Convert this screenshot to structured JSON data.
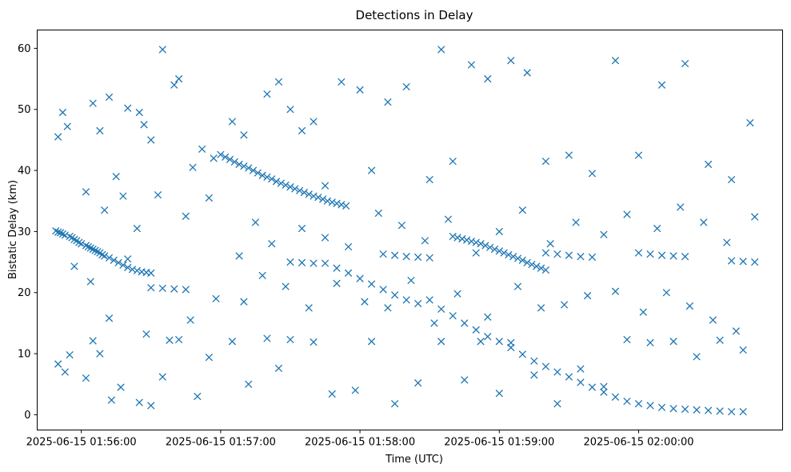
{
  "chart_data": {
    "type": "scatter",
    "title": "Detections in Delay",
    "xlabel": "Time (UTC)",
    "ylabel": "Bistatic Delay (km)",
    "x_ticks": [
      "2025-06-15 01:56:00",
      "2025-06-15 01:57:00",
      "2025-06-15 01:58:00",
      "2025-06-15 01:59:00",
      "2025-06-15 02:00:00"
    ],
    "y_ticks": [
      0,
      10,
      20,
      30,
      40,
      50,
      60
    ],
    "xlim": [
      "2025-06-15 01:55:41",
      "2025-06-15 02:01:02"
    ],
    "ylim": [
      -2.5,
      63
    ],
    "grid": false,
    "marker": "x",
    "color": "#1f77b4",
    "series": [
      {
        "x": [
          "2025-06-15 01:55:49",
          "2025-06-15 01:55:50",
          "2025-06-15 01:55:51",
          "2025-06-15 01:55:52",
          "2025-06-15 01:55:53",
          "2025-06-15 01:55:55",
          "2025-06-15 01:55:56",
          "2025-06-15 01:55:57",
          "2025-06-15 01:55:58",
          "2025-06-15 01:55:59",
          "2025-06-15 01:56:00",
          "2025-06-15 01:56:02",
          "2025-06-15 01:56:03",
          "2025-06-15 01:56:04",
          "2025-06-15 01:56:05",
          "2025-06-15 01:56:06",
          "2025-06-15 01:56:07",
          "2025-06-15 01:56:08",
          "2025-06-15 01:56:09",
          "2025-06-15 01:56:10",
          "2025-06-15 01:56:12",
          "2025-06-15 01:56:14",
          "2025-06-15 01:56:16",
          "2025-06-15 01:56:18",
          "2025-06-15 01:56:20",
          "2025-06-15 01:56:22",
          "2025-06-15 01:56:24",
          "2025-06-15 01:56:26",
          "2025-06-15 01:56:28",
          "2025-06-15 01:56:30"
        ],
        "y": [
          30.1,
          29.9,
          29.8,
          29.6,
          29.4,
          29.2,
          29.0,
          28.7,
          28.5,
          28.2,
          28.0,
          27.7,
          27.5,
          27.3,
          27.1,
          26.9,
          26.7,
          26.5,
          26.2,
          26.0,
          25.7,
          25.3,
          24.9,
          24.5,
          24.1,
          23.8,
          23.6,
          23.4,
          23.3,
          23.2
        ]
      },
      {
        "x": [
          "2025-06-15 01:57:00",
          "2025-06-15 01:57:02",
          "2025-06-15 01:57:04",
          "2025-06-15 01:57:06",
          "2025-06-15 01:57:08",
          "2025-06-15 01:57:10",
          "2025-06-15 01:57:12",
          "2025-06-15 01:57:14",
          "2025-06-15 01:57:16",
          "2025-06-15 01:57:18",
          "2025-06-15 01:57:20",
          "2025-06-15 01:57:22",
          "2025-06-15 01:57:24",
          "2025-06-15 01:57:26",
          "2025-06-15 01:57:28",
          "2025-06-15 01:57:30",
          "2025-06-15 01:57:32",
          "2025-06-15 01:57:34",
          "2025-06-15 01:57:36",
          "2025-06-15 01:57:38",
          "2025-06-15 01:57:40",
          "2025-06-15 01:57:42",
          "2025-06-15 01:57:44",
          "2025-06-15 01:57:46",
          "2025-06-15 01:57:48",
          "2025-06-15 01:57:50",
          "2025-06-15 01:57:52",
          "2025-06-15 01:57:54"
        ],
        "y": [
          42.6,
          42.2,
          41.8,
          41.4,
          41.0,
          40.7,
          40.4,
          40.0,
          39.6,
          39.2,
          38.9,
          38.6,
          38.2,
          37.9,
          37.6,
          37.3,
          37.0,
          36.7,
          36.4,
          36.1,
          35.8,
          35.6,
          35.3,
          35.0,
          34.8,
          34.6,
          34.4,
          34.2
        ]
      },
      {
        "x": [
          "2025-06-15 01:57:45",
          "2025-06-15 01:57:50",
          "2025-06-15 01:57:55",
          "2025-06-15 01:58:00",
          "2025-06-15 01:58:05",
          "2025-06-15 01:58:10",
          "2025-06-15 01:58:15",
          "2025-06-15 01:58:20",
          "2025-06-15 01:58:25",
          "2025-06-15 01:58:30",
          "2025-06-15 01:58:35",
          "2025-06-15 01:58:40",
          "2025-06-15 01:58:45",
          "2025-06-15 01:58:50",
          "2025-06-15 01:58:55",
          "2025-06-15 01:59:00",
          "2025-06-15 01:59:05",
          "2025-06-15 01:59:10",
          "2025-06-15 01:59:15",
          "2025-06-15 01:59:20",
          "2025-06-15 01:59:25",
          "2025-06-15 01:59:30",
          "2025-06-15 01:59:35",
          "2025-06-15 01:59:40",
          "2025-06-15 01:59:45",
          "2025-06-15 01:59:50",
          "2025-06-15 01:59:55",
          "2025-06-15 02:00:00",
          "2025-06-15 02:00:05",
          "2025-06-15 02:00:10",
          "2025-06-15 02:00:15",
          "2025-06-15 02:00:20",
          "2025-06-15 02:00:25",
          "2025-06-15 02:00:30",
          "2025-06-15 02:00:35",
          "2025-06-15 02:00:40",
          "2025-06-15 02:00:45"
        ],
        "y": [
          24.8,
          24.0,
          23.2,
          22.3,
          21.4,
          20.5,
          19.6,
          18.8,
          18.2,
          18.8,
          17.3,
          16.2,
          15.0,
          13.9,
          12.8,
          12.0,
          11.0,
          9.9,
          8.8,
          7.9,
          7.0,
          6.2,
          5.3,
          4.5,
          3.7,
          2.9,
          2.2,
          1.8,
          1.5,
          1.2,
          1.0,
          0.9,
          0.8,
          0.7,
          0.6,
          0.5,
          0.5
        ]
      },
      {
        "x": [
          "2025-06-15 01:56:30",
          "2025-06-15 01:56:35",
          "2025-06-15 01:56:40",
          "2025-06-15 01:56:45",
          "2025-06-15 01:57:30",
          "2025-06-15 01:57:35",
          "2025-06-15 01:57:40",
          "2025-06-15 01:58:10",
          "2025-06-15 01:58:15",
          "2025-06-15 01:58:20",
          "2025-06-15 01:58:25",
          "2025-06-15 01:58:30",
          "2025-06-15 01:59:20",
          "2025-06-15 01:59:25",
          "2025-06-15 01:59:30",
          "2025-06-15 01:59:35",
          "2025-06-15 01:59:40",
          "2025-06-15 02:00:00",
          "2025-06-15 02:00:05",
          "2025-06-15 02:00:10",
          "2025-06-15 02:00:15",
          "2025-06-15 02:00:20",
          "2025-06-15 02:00:40",
          "2025-06-15 02:00:45",
          "2025-06-15 02:00:50"
        ],
        "y": [
          20.8,
          20.7,
          20.6,
          20.5,
          25.0,
          24.9,
          24.8,
          26.3,
          26.1,
          25.9,
          25.8,
          25.7,
          26.5,
          26.3,
          26.1,
          25.9,
          25.8,
          26.5,
          26.3,
          26.1,
          26.0,
          25.9,
          25.2,
          25.1,
          25.0
        ]
      },
      {
        "x": [
          "2025-06-15 01:58:40",
          "2025-06-15 01:58:42",
          "2025-06-15 01:58:44",
          "2025-06-15 01:58:46",
          "2025-06-15 01:58:48",
          "2025-06-15 01:58:50",
          "2025-06-15 01:58:52",
          "2025-06-15 01:58:54",
          "2025-06-15 01:58:56",
          "2025-06-15 01:58:58",
          "2025-06-15 01:59:00",
          "2025-06-15 01:59:02",
          "2025-06-15 01:59:04",
          "2025-06-15 01:59:06",
          "2025-06-15 01:59:08",
          "2025-06-15 01:59:10",
          "2025-06-15 01:59:12",
          "2025-06-15 01:59:14",
          "2025-06-15 01:59:16",
          "2025-06-15 01:59:18",
          "2025-06-15 01:59:20"
        ],
        "y": [
          29.2,
          29.0,
          28.8,
          28.6,
          28.4,
          28.2,
          28.0,
          27.7,
          27.4,
          27.1,
          26.8,
          26.5,
          26.2,
          25.9,
          25.6,
          25.3,
          24.9,
          24.6,
          24.3,
          24.0,
          23.7
        ]
      },
      {
        "x": [
          "2025-06-15 01:55:50",
          "2025-06-15 01:55:52",
          "2025-06-15 01:55:54",
          "2025-06-15 01:56:05",
          "2025-06-15 01:56:08",
          "2025-06-15 01:56:12",
          "2025-06-15 01:56:15",
          "2025-06-15 01:56:20",
          "2025-06-15 01:56:25",
          "2025-06-15 01:56:27",
          "2025-06-15 01:56:30",
          "2025-06-15 01:56:35",
          "2025-06-15 01:56:40",
          "2025-06-15 01:56:42",
          "2025-06-15 01:56:48",
          "2025-06-15 01:56:52",
          "2025-06-15 01:56:57",
          "2025-06-15 01:57:05",
          "2025-06-15 01:57:10",
          "2025-06-15 01:57:20",
          "2025-06-15 01:57:25",
          "2025-06-15 01:57:30",
          "2025-06-15 01:57:35",
          "2025-06-15 01:57:40",
          "2025-06-15 01:57:45",
          "2025-06-15 01:57:52",
          "2025-06-15 01:58:00",
          "2025-06-15 01:58:05",
          "2025-06-15 01:58:12",
          "2025-06-15 01:58:20",
          "2025-06-15 01:58:30",
          "2025-06-15 01:58:35",
          "2025-06-15 01:58:40",
          "2025-06-15 01:58:48",
          "2025-06-15 01:58:55",
          "2025-06-15 01:59:05",
          "2025-06-15 01:59:12",
          "2025-06-15 01:59:20",
          "2025-06-15 01:59:30",
          "2025-06-15 01:59:40",
          "2025-06-15 01:59:50",
          "2025-06-15 02:00:00",
          "2025-06-15 02:00:10",
          "2025-06-15 02:00:20",
          "2025-06-15 02:00:30",
          "2025-06-15 02:00:40",
          "2025-06-15 02:00:48"
        ],
        "y": [
          45.5,
          49.5,
          47.2,
          51.0,
          46.5,
          52.0,
          39.0,
          50.2,
          49.5,
          47.5,
          45.0,
          59.8,
          54.0,
          55.0,
          40.5,
          43.5,
          42.0,
          48.0,
          45.8,
          52.5,
          54.5,
          50.0,
          46.5,
          48.0,
          37.5,
          54.5,
          53.2,
          40.0,
          51.2,
          53.7,
          38.5,
          59.8,
          41.5,
          57.3,
          55.0,
          58.0,
          56.0,
          41.5,
          42.5,
          39.5,
          58.0,
          42.5,
          54.0,
          57.5,
          41.0,
          38.5,
          47.8
        ]
      },
      {
        "x": [
          "2025-06-15 01:55:50",
          "2025-06-15 01:55:53",
          "2025-06-15 01:55:55",
          "2025-06-15 01:56:02",
          "2025-06-15 01:56:05",
          "2025-06-15 01:56:08",
          "2025-06-15 01:56:13",
          "2025-06-15 01:56:17",
          "2025-06-15 01:56:25",
          "2025-06-15 01:56:30",
          "2025-06-15 01:56:35",
          "2025-06-15 01:56:42",
          "2025-06-15 01:56:50",
          "2025-06-15 01:56:55",
          "2025-06-15 01:57:05",
          "2025-06-15 01:57:12",
          "2025-06-15 01:57:20",
          "2025-06-15 01:57:25",
          "2025-06-15 01:57:30",
          "2025-06-15 01:57:40",
          "2025-06-15 01:57:48",
          "2025-06-15 01:57:58",
          "2025-06-15 01:58:05",
          "2025-06-15 01:58:15",
          "2025-06-15 01:58:25",
          "2025-06-15 01:58:35",
          "2025-06-15 01:58:45",
          "2025-06-15 01:58:52",
          "2025-06-15 01:59:00",
          "2025-06-15 01:59:05",
          "2025-06-15 01:59:15",
          "2025-06-15 01:59:25",
          "2025-06-15 01:59:35",
          "2025-06-15 01:59:45",
          "2025-06-15 01:59:55",
          "2025-06-15 02:00:05",
          "2025-06-15 02:00:15",
          "2025-06-15 02:00:25",
          "2025-06-15 02:00:35",
          "2025-06-15 02:00:45"
        ],
        "y": [
          8.3,
          7.0,
          9.8,
          6.0,
          12.1,
          10.0,
          2.4,
          4.5,
          2.0,
          1.5,
          6.2,
          12.3,
          3.0,
          9.4,
          12.0,
          5.0,
          12.5,
          7.6,
          12.3,
          11.9,
          3.4,
          4.0,
          12.0,
          1.8,
          5.2,
          12.0,
          5.7,
          12.0,
          3.5,
          11.8,
          6.5,
          1.8,
          7.5,
          4.6,
          12.3,
          11.8,
          12.0,
          9.5,
          12.2,
          10.6
        ]
      },
      {
        "x": [
          "2025-06-15 01:56:02",
          "2025-06-15 01:56:10",
          "2025-06-15 01:56:18",
          "2025-06-15 01:56:24",
          "2025-06-15 01:56:33",
          "2025-06-15 01:56:45",
          "2025-06-15 01:56:55",
          "2025-06-15 01:57:08",
          "2025-06-15 01:57:15",
          "2025-06-15 01:57:22",
          "2025-06-15 01:57:35",
          "2025-06-15 01:57:45",
          "2025-06-15 01:57:55",
          "2025-06-15 01:58:08",
          "2025-06-15 01:58:18",
          "2025-06-15 01:58:28",
          "2025-06-15 01:58:38",
          "2025-06-15 01:58:50",
          "2025-06-15 01:59:00",
          "2025-06-15 01:59:10",
          "2025-06-15 01:59:22",
          "2025-06-15 01:59:33",
          "2025-06-15 01:59:45",
          "2025-06-15 01:59:55",
          "2025-06-15 02:00:08",
          "2025-06-15 02:00:18",
          "2025-06-15 02:00:28",
          "2025-06-15 02:00:38",
          "2025-06-15 02:00:50"
        ],
        "y": [
          36.5,
          33.5,
          35.8,
          30.5,
          36.0,
          32.5,
          35.5,
          26.0,
          31.5,
          28.0,
          30.5,
          29.0,
          27.5,
          33.0,
          31.0,
          28.5,
          32.0,
          26.5,
          30.0,
          33.5,
          28.0,
          31.5,
          29.5,
          32.8,
          30.5,
          34.0,
          31.5,
          28.2,
          32.4
        ]
      },
      {
        "x": [
          "2025-06-15 01:55:57",
          "2025-06-15 01:56:04",
          "2025-06-15 01:56:12",
          "2025-06-15 01:56:20",
          "2025-06-15 01:56:28",
          "2025-06-15 01:56:38",
          "2025-06-15 01:56:47",
          "2025-06-15 01:56:58",
          "2025-06-15 01:57:10",
          "2025-06-15 01:57:18",
          "2025-06-15 01:57:28",
          "2025-06-15 01:57:38",
          "2025-06-15 01:57:50",
          "2025-06-15 01:58:02",
          "2025-06-15 01:58:12",
          "2025-06-15 01:58:22",
          "2025-06-15 01:58:32",
          "2025-06-15 01:58:42",
          "2025-06-15 01:58:55",
          "2025-06-15 01:59:08",
          "2025-06-15 01:59:18",
          "2025-06-15 01:59:28",
          "2025-06-15 01:59:38",
          "2025-06-15 01:59:50",
          "2025-06-15 02:00:02",
          "2025-06-15 02:00:12",
          "2025-06-15 02:00:22",
          "2025-06-15 02:00:32",
          "2025-06-15 02:00:42"
        ],
        "y": [
          24.3,
          21.8,
          15.8,
          25.5,
          13.2,
          12.2,
          15.5,
          19.0,
          18.5,
          22.8,
          21.0,
          17.5,
          21.5,
          18.5,
          17.5,
          22.0,
          15.0,
          19.8,
          16.0,
          21.0,
          17.5,
          18.0,
          19.5,
          20.2,
          16.8,
          20.0,
          17.8,
          15.5,
          13.7
        ]
      }
    ]
  }
}
